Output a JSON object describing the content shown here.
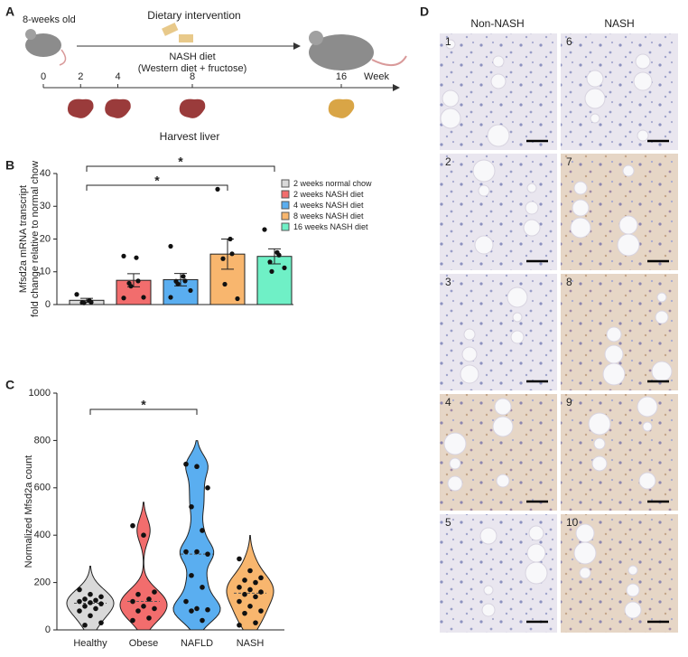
{
  "panel_a": {
    "label": "A",
    "start": "8-weeks old",
    "intervention": "Dietary intervention",
    "diet": "NASH diet",
    "diet_detail": "(Western diet + fructose)",
    "timeline": [
      0,
      2,
      4,
      8,
      16
    ],
    "unit": "Week",
    "harvest": "Harvest liver"
  },
  "chart_data": [
    {
      "type": "bar",
      "label": "B",
      "ylabel": [
        "Mfsd2a mRNA transcript",
        "fold change relative to normal chow"
      ],
      "categories": [
        "2 weeks normal chow",
        "2 weeks NASH diet",
        "4 weeks NASH diet",
        "8 weeks NASH diet",
        "16 weeks NASH diet"
      ],
      "values": [
        1.3,
        7.4,
        7.6,
        15.4,
        14.7
      ],
      "errors": [
        0.6,
        2.0,
        1.9,
        4.6,
        2.3
      ],
      "colors": [
        "#d9d9d9",
        "#f26d6d",
        "#5aaef0",
        "#f8b66e",
        "#6ff0c6"
      ],
      "points": [
        [
          3.1,
          1.2,
          0.7,
          0.6,
          0.5
        ],
        [
          14.8,
          14.3,
          7.2,
          6.5,
          5.6,
          2.2,
          2.0
        ],
        [
          17.8,
          8.6,
          7.2,
          7.1,
          6.3,
          4.3,
          2.2
        ],
        [
          35.2,
          20.0,
          15.5,
          14.0,
          6.2,
          1.8
        ],
        [
          22.9,
          15.9,
          15.1,
          13.0,
          10.1,
          11.2
        ]
      ],
      "ylim": [
        0,
        40
      ],
      "yticks": [
        0,
        10,
        20,
        30,
        40
      ],
      "significance": [
        {
          "from": 0,
          "to": 4,
          "label": "*"
        },
        {
          "from": 0,
          "to": 3,
          "label": "*"
        }
      ],
      "legend": "right"
    },
    {
      "type": "violin",
      "label": "C",
      "ylabel": "Normalized Mfsd2a count",
      "categories": [
        "Healthy",
        "Obese",
        "NAFLD",
        "NASH"
      ],
      "colors": [
        "#d9d9d9",
        "#f26d6d",
        "#5aaef0",
        "#f8b66e"
      ],
      "points": [
        [
          170,
          150,
          140,
          130,
          125,
          120,
          115,
          110,
          100,
          90,
          80,
          60,
          30,
          20
        ],
        [
          440,
          400,
          160,
          150,
          130,
          120,
          100,
          90,
          80,
          50,
          40
        ],
        [
          700,
          690,
          600,
          520,
          420,
          330,
          330,
          320,
          230,
          180,
          120,
          90,
          85,
          80,
          40
        ],
        [
          300,
          250,
          220,
          210,
          200,
          180,
          170,
          160,
          150,
          140,
          120,
          100,
          80,
          70,
          30,
          20
        ]
      ],
      "ylim": [
        0,
        1000
      ],
      "yticks": [
        0,
        200,
        400,
        600,
        800,
        1000
      ],
      "significance": [
        {
          "from": 0,
          "to": 2,
          "label": "*"
        }
      ]
    }
  ],
  "panel_d": {
    "label": "D",
    "columns": [
      "Non-NASH",
      "NASH"
    ],
    "images": [
      "1",
      "2",
      "3",
      "4",
      "5",
      "6",
      "7",
      "8",
      "9",
      "10"
    ]
  }
}
